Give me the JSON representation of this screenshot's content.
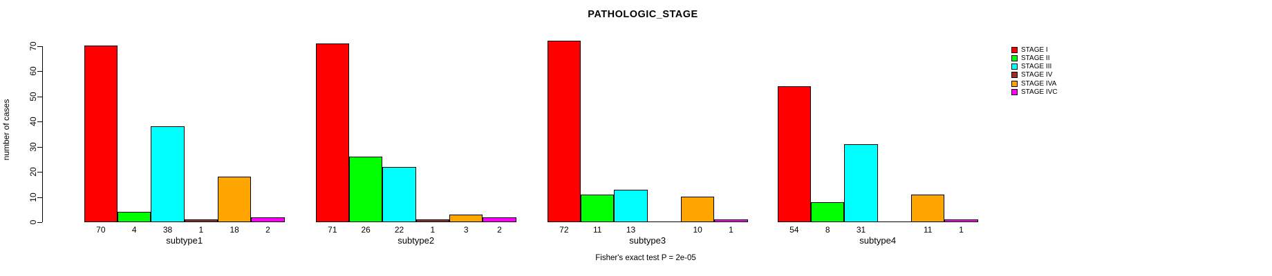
{
  "title": "PATHOLOGIC_STAGE",
  "footer": "Fisher's exact test P = 2e-05",
  "chart_data": {
    "type": "bar",
    "title": "PATHOLOGIC_STAGE",
    "xlabel": "",
    "ylabel": "number of cases",
    "ylim": [
      0,
      70
    ],
    "yticks": [
      0,
      10,
      20,
      30,
      40,
      50,
      60,
      70
    ],
    "grid": false,
    "legend_position": "right",
    "legend": [
      {
        "label": "STAGE I",
        "color": "#FF0000"
      },
      {
        "label": "STAGE II",
        "color": "#00FF00"
      },
      {
        "label": "STAGE III",
        "color": "#00FFFF"
      },
      {
        "label": "STAGE IV",
        "color": "#A52A2A"
      },
      {
        "label": "STAGE IVA",
        "color": "#FFA500"
      },
      {
        "label": "STAGE IVC",
        "color": "#FF00FF"
      }
    ],
    "groups": [
      {
        "label": "subtype1",
        "values": [
          70,
          4,
          38,
          1,
          18,
          2
        ],
        "bar_labels": [
          "70",
          "4",
          "38",
          "1",
          "18",
          "2"
        ]
      },
      {
        "label": "subtype2",
        "values": [
          71,
          26,
          22,
          1,
          3,
          2
        ],
        "bar_labels": [
          "71",
          "26",
          "22",
          "1",
          "3",
          "2"
        ]
      },
      {
        "label": "subtype3",
        "values": [
          72,
          11,
          13,
          0,
          10,
          1
        ],
        "bar_labels": [
          "72",
          "11",
          "13",
          "",
          "10",
          "1"
        ]
      },
      {
        "label": "subtype4",
        "values": [
          54,
          8,
          31,
          0,
          11,
          1
        ],
        "bar_labels": [
          "54",
          "8",
          "31",
          "",
          "11",
          "1"
        ]
      }
    ],
    "annotation": "Fisher's exact test P = 2e-05",
    "axis_color": "#000000",
    "bar_border_color": "#000000"
  }
}
